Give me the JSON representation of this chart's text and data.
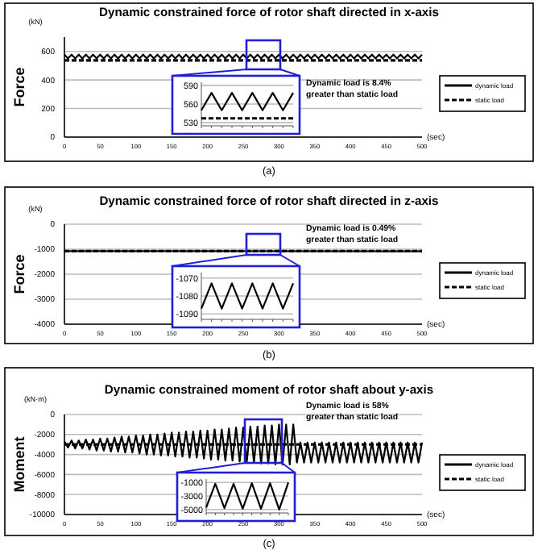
{
  "chart_data": [
    {
      "type": "line",
      "title": "Dynamic constrained force of rotor shaft directed in x-axis",
      "ylabel": "Force",
      "xlabel": "(sec)",
      "annotations": [
        "(kN)",
        "Dynamic load is 8.4% greater than static load",
        "(a)"
      ],
      "xlim": [
        0,
        500
      ],
      "ylim": [
        0,
        700
      ],
      "xticks": [
        0,
        50,
        100,
        150,
        200,
        250,
        300,
        350,
        400,
        450,
        500
      ],
      "yticks": [
        0,
        200,
        400,
        600
      ],
      "grid": "y",
      "legend": "right",
      "x": [
        0,
        5,
        10,
        15,
        20,
        25,
        30,
        35,
        40,
        45,
        50,
        55,
        60,
        65,
        70,
        75,
        80,
        85,
        90,
        95,
        100,
        105,
        110,
        115,
        120,
        125,
        130,
        135,
        140,
        145,
        150,
        155,
        160,
        165,
        170,
        175,
        180,
        185,
        190,
        195,
        200,
        205,
        210,
        215,
        220,
        225,
        230,
        235,
        240,
        245,
        250,
        255,
        260,
        265,
        270,
        275,
        280,
        285,
        290,
        295,
        300,
        305,
        310,
        315,
        320,
        325,
        330,
        335,
        340,
        345,
        350,
        355,
        360,
        365,
        370,
        375,
        380,
        385,
        390,
        395,
        400,
        405,
        410,
        415,
        420,
        425,
        430,
        435,
        440,
        445,
        450,
        455,
        460,
        465,
        470,
        475,
        480,
        485,
        490,
        495,
        500
      ],
      "series": [
        {
          "name": "dynamic load",
          "color": "#000000",
          "values": [
            578,
            550,
            578,
            550,
            578,
            550,
            578,
            550,
            578,
            550,
            578,
            550,
            578,
            550,
            578,
            550,
            578,
            550,
            578,
            550,
            578,
            550,
            578,
            550,
            578,
            550,
            578,
            550,
            578,
            550,
            578,
            550,
            578,
            550,
            578,
            550,
            578,
            550,
            578,
            550,
            578,
            550,
            578,
            550,
            578,
            550,
            578,
            550,
            578,
            550,
            578,
            550,
            578,
            550,
            578,
            550,
            578,
            550,
            578,
            550,
            578,
            550,
            578,
            550,
            578,
            550,
            578,
            550,
            578,
            550,
            578,
            550,
            578,
            550,
            578,
            550,
            578,
            550,
            578,
            550,
            578,
            550,
            578,
            550,
            578,
            550,
            578,
            550,
            578,
            550,
            578,
            550,
            578,
            550,
            578,
            550,
            578,
            550,
            578,
            550,
            578
          ]
        },
        {
          "name": "static load",
          "color": "#000000",
          "line_style": "dashed",
          "values": [
            537,
            537,
            537,
            537,
            537,
            537,
            537,
            537,
            537,
            537,
            537,
            537,
            537,
            537,
            537,
            537,
            537,
            537,
            537,
            537,
            537,
            537,
            537,
            537,
            537,
            537,
            537,
            537,
            537,
            537,
            537,
            537,
            537,
            537,
            537,
            537,
            537,
            537,
            537,
            537,
            537,
            537,
            537,
            537,
            537,
            537,
            537,
            537,
            537,
            537,
            537,
            537,
            537,
            537,
            537,
            537,
            537,
            537,
            537,
            537,
            537,
            537,
            537,
            537,
            537,
            537,
            537,
            537,
            537,
            537,
            537,
            537,
            537,
            537,
            537,
            537,
            537,
            537,
            537,
            537,
            537,
            537,
            537,
            537,
            537,
            537,
            537,
            537,
            537,
            537,
            537,
            537,
            537,
            537,
            537,
            537,
            537,
            537,
            537,
            537,
            537
          ]
        }
      ]
    },
    {
      "type": "line",
      "ylim": [
        525,
        595
      ],
      "yticks": [
        530,
        560,
        590
      ],
      "grid": "y",
      "categories": [
        null,
        null,
        null,
        null,
        null,
        null,
        null,
        null,
        null,
        null
      ],
      "series": [
        {
          "color": "#000000",
          "values": [
            550,
            578,
            550,
            578,
            550,
            578,
            550,
            578,
            550,
            578
          ]
        },
        {
          "color": "#000000",
          "line_style": "dashed",
          "values": [
            537,
            537,
            537,
            537,
            537,
            537,
            537,
            537,
            537,
            537
          ]
        }
      ]
    },
    {
      "type": "line",
      "title": "Dynamic constrained force of rotor shaft directed in z-axis",
      "ylabel": "Force",
      "xlabel": "(sec)",
      "annotations": [
        "(kN)",
        "Dynamic load is 0.49% greater than static load",
        "(b)"
      ],
      "xlim": [
        0,
        500
      ],
      "ylim": [
        -4000,
        0
      ],
      "xticks": [
        0,
        50,
        100,
        150,
        200,
        250,
        300,
        350,
        400,
        450,
        500
      ],
      "yticks": [
        -4000,
        -3000,
        -2000,
        -1000,
        0
      ],
      "grid": "y",
      "legend": "right",
      "x": [
        0,
        5,
        10,
        15,
        20,
        25,
        30,
        35,
        40,
        45,
        50,
        55,
        60,
        65,
        70,
        75,
        80,
        85,
        90,
        95,
        100,
        105,
        110,
        115,
        120,
        125,
        130,
        135,
        140,
        145,
        150,
        155,
        160,
        165,
        170,
        175,
        180,
        185,
        190,
        195,
        200,
        205,
        210,
        215,
        220,
        225,
        230,
        235,
        240,
        245,
        250,
        255,
        260,
        265,
        270,
        275,
        280,
        285,
        290,
        295,
        300,
        305,
        310,
        315,
        320,
        325,
        330,
        335,
        340,
        345,
        350,
        355,
        360,
        365,
        370,
        375,
        380,
        385,
        390,
        395,
        400,
        405,
        410,
        415,
        420,
        425,
        430,
        435,
        440,
        445,
        450,
        455,
        460,
        465,
        470,
        475,
        480,
        485,
        490,
        495,
        500
      ],
      "series": [
        {
          "name": "dynamic load",
          "color": "#000000",
          "values": [
            -1073,
            -1087,
            -1073,
            -1087,
            -1073,
            -1087,
            -1073,
            -1087,
            -1073,
            -1087,
            -1073,
            -1087,
            -1073,
            -1087,
            -1073,
            -1087,
            -1073,
            -1087,
            -1073,
            -1087,
            -1073,
            -1087,
            -1073,
            -1087,
            -1073,
            -1087,
            -1073,
            -1087,
            -1073,
            -1087,
            -1073,
            -1087,
            -1073,
            -1087,
            -1073,
            -1087,
            -1073,
            -1087,
            -1073,
            -1087,
            -1073,
            -1087,
            -1073,
            -1087,
            -1073,
            -1087,
            -1073,
            -1087,
            -1073,
            -1087,
            -1073,
            -1087,
            -1073,
            -1087,
            -1073,
            -1087,
            -1073,
            -1087,
            -1073,
            -1087,
            -1073,
            -1087,
            -1073,
            -1087,
            -1073,
            -1087,
            -1073,
            -1087,
            -1073,
            -1087,
            -1073,
            -1087,
            -1073,
            -1087,
            -1073,
            -1087,
            -1073,
            -1087,
            -1073,
            -1087,
            -1073,
            -1087,
            -1073,
            -1087,
            -1073,
            -1087,
            -1073,
            -1087,
            -1073,
            -1087,
            -1073,
            -1087,
            -1073,
            -1087,
            -1073,
            -1087,
            -1073,
            -1087,
            -1073,
            -1087,
            -1073
          ]
        },
        {
          "name": "static load",
          "color": "#000000",
          "line_style": "dashed",
          "values": [
            -1075,
            -1075,
            -1075,
            -1075,
            -1075,
            -1075,
            -1075,
            -1075,
            -1075,
            -1075,
            -1075,
            -1075,
            -1075,
            -1075,
            -1075,
            -1075,
            -1075,
            -1075,
            -1075,
            -1075,
            -1075,
            -1075,
            -1075,
            -1075,
            -1075,
            -1075,
            -1075,
            -1075,
            -1075,
            -1075,
            -1075,
            -1075,
            -1075,
            -1075,
            -1075,
            -1075,
            -1075,
            -1075,
            -1075,
            -1075,
            -1075,
            -1075,
            -1075,
            -1075,
            -1075,
            -1075,
            -1075,
            -1075,
            -1075,
            -1075,
            -1075,
            -1075,
            -1075,
            -1075,
            -1075,
            -1075,
            -1075,
            -1075,
            -1075,
            -1075,
            -1075,
            -1075,
            -1075,
            -1075,
            -1075,
            -1075,
            -1075,
            -1075,
            -1075,
            -1075,
            -1075,
            -1075,
            -1075,
            -1075,
            -1075,
            -1075,
            -1075,
            -1075,
            -1075,
            -1075,
            -1075,
            -1075,
            -1075,
            -1075,
            -1075,
            -1075,
            -1075,
            -1075,
            -1075,
            -1075,
            -1075,
            -1075,
            -1075,
            -1075,
            -1075,
            -1075,
            -1075,
            -1075,
            -1075,
            -1075,
            -1075
          ]
        }
      ]
    },
    {
      "type": "line",
      "ylim": [
        -1093,
        -1067
      ],
      "yticks": [
        -1090,
        -1080,
        -1070
      ],
      "grid": "y",
      "categories": [
        null,
        null,
        null,
        null,
        null,
        null,
        null,
        null,
        null,
        null
      ],
      "series": [
        {
          "color": "#000000",
          "values": [
            -1087,
            -1073,
            -1087,
            -1073,
            -1087,
            -1073,
            -1087,
            -1073,
            -1087,
            -1073
          ]
        }
      ]
    },
    {
      "type": "line",
      "title": "Dynamic constrained moment of rotor shaft about y-axis",
      "ylabel": "Moment",
      "xlabel": "(sec)",
      "annotations": [
        "(kN·m)",
        "Dynamic load is 58% greater than static load",
        "(c)"
      ],
      "xlim": [
        0,
        500
      ],
      "ylim": [
        -10000,
        0
      ],
      "xticks": [
        0,
        50,
        100,
        150,
        200,
        250,
        300,
        350,
        400,
        450,
        500
      ],
      "yticks": [
        -10000,
        -8000,
        -6000,
        -4000,
        -2000,
        0
      ],
      "grid": "y",
      "legend": "right",
      "x": [
        0,
        5,
        10,
        15,
        20,
        25,
        30,
        35,
        40,
        45,
        50,
        55,
        60,
        65,
        70,
        75,
        80,
        85,
        90,
        95,
        100,
        105,
        110,
        115,
        120,
        125,
        130,
        135,
        140,
        145,
        150,
        155,
        160,
        165,
        170,
        175,
        180,
        185,
        190,
        195,
        200,
        205,
        210,
        215,
        220,
        225,
        230,
        235,
        240,
        245,
        250,
        255,
        260,
        265,
        270,
        275,
        280,
        285,
        290,
        295,
        300,
        305,
        310,
        315,
        320,
        325,
        330,
        335,
        340,
        345,
        350,
        355,
        360,
        365,
        370,
        375,
        380,
        385,
        390,
        395,
        400,
        405,
        410,
        415,
        420,
        425,
        430,
        435,
        440,
        445,
        450,
        455,
        460,
        465,
        470,
        475,
        480,
        485,
        490,
        495,
        500
      ],
      "series": [
        {
          "name": "dynamic load",
          "color": "#000000",
          "values": [
            -2700,
            -3300,
            -2600,
            -3400,
            -2600,
            -3400,
            -2500,
            -3500,
            -2500,
            -3600,
            -2400,
            -3600,
            -2400,
            -3700,
            -2300,
            -3700,
            -2200,
            -3800,
            -2200,
            -3800,
            -2100,
            -3900,
            -2100,
            -4000,
            -2000,
            -4000,
            -2000,
            -4100,
            -1900,
            -4100,
            -1800,
            -4200,
            -1800,
            -4200,
            -1700,
            -4300,
            -1700,
            -4300,
            -1600,
            -4400,
            -1600,
            -4500,
            -1500,
            -4500,
            -1500,
            -4600,
            -1400,
            -4600,
            -1300,
            -4700,
            -1300,
            -4700,
            -1200,
            -4800,
            -1200,
            -4900,
            -1100,
            -4900,
            -1100,
            -5000,
            -1000,
            -5000,
            -1000,
            -5000,
            -1000,
            -4800,
            -2800,
            -4800,
            -2800,
            -4800,
            -2800,
            -4800,
            -2800,
            -4800,
            -2800,
            -4800,
            -2800,
            -4800,
            -2800,
            -4800,
            -2800,
            -4800,
            -2800,
            -4800,
            -2800,
            -4800,
            -2800,
            -4800,
            -2800,
            -4800,
            -2800,
            -4800,
            -2800,
            -4800,
            -2800,
            -4800,
            -2800,
            -4800,
            -2800,
            -4800,
            -2800
          ]
        },
        {
          "name": "static load",
          "color": "#000000",
          "line_style": "dashed",
          "values": [
            -3000,
            -3000,
            -3000,
            -3000,
            -3000,
            -3000,
            -3000,
            -3000,
            -3000,
            -3000,
            -3000,
            -3000,
            -3000,
            -3000,
            -3000,
            -3000,
            -3000,
            -3000,
            -3000,
            -3000,
            -3000,
            -3000,
            -3000,
            -3000,
            -3000,
            -3000,
            -3000,
            -3000,
            -3000,
            -3000,
            -3000,
            -3000,
            -3000,
            -3000,
            -3000,
            -3000,
            -3000,
            -3000,
            -3000,
            -3000,
            -3000,
            -3000,
            -3000,
            -3000,
            -3000,
            -3000,
            -3000,
            -3000,
            -3000,
            -3000,
            -3000,
            -3000,
            -3000,
            -3000,
            -3000,
            -3000,
            -3000,
            -3000,
            -3000,
            -3000,
            -3000,
            -3000,
            -3000,
            -3000,
            -3000,
            -3000,
            -3000,
            -3000,
            -3000,
            -3000,
            -3000,
            -3000,
            -3000,
            -3000,
            -3000,
            -3000,
            -3000,
            -3000,
            -3000,
            -3000,
            -3000,
            -3000,
            -3000,
            -3000,
            -3000,
            -3000,
            -3000,
            -3000,
            -3000,
            -3000,
            -3000,
            -3000,
            -3000,
            -3000,
            -3000,
            -3000,
            -3000,
            -3000,
            -3000,
            -3000,
            -3000
          ]
        }
      ]
    },
    {
      "type": "line",
      "ylim": [
        -5500,
        -500
      ],
      "yticks": [
        -5000,
        -3000,
        -1000
      ],
      "grid": "y",
      "categories": [
        null,
        null,
        null,
        null,
        null,
        null,
        null,
        null,
        null,
        null
      ],
      "series": [
        {
          "color": "#000000",
          "values": [
            -4700,
            -1200,
            -4800,
            -1200,
            -4900,
            -1100,
            -4900,
            -1100,
            -5000,
            -1000
          ]
        }
      ]
    }
  ]
}
